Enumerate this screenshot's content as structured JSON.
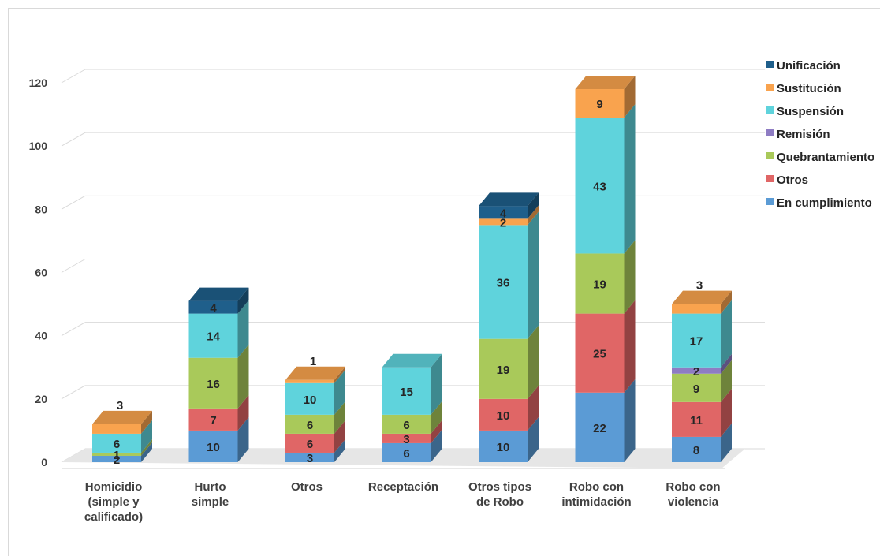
{
  "chart_data": {
    "type": "bar",
    "stacked": true,
    "three_d": true,
    "title": "",
    "xlabel": "",
    "ylabel": "",
    "ylim": [
      0,
      120
    ],
    "yticks": [
      "0",
      "20",
      "40",
      "60",
      "80",
      "100",
      "120"
    ],
    "grid": true,
    "legend_position": "right",
    "categories": [
      [
        "Homicidio",
        "(simple y",
        "calificado)"
      ],
      [
        "Hurto",
        "simple"
      ],
      [
        "Otros"
      ],
      [
        "Receptación"
      ],
      [
        "Otros tipos",
        "de Robo"
      ],
      [
        "Robo con",
        "intimidación"
      ],
      [
        "Robo con",
        "violencia"
      ]
    ],
    "series": [
      {
        "name": "En cumplimiento",
        "color": "#5b9bd5",
        "values": [
          2,
          10,
          3,
          6,
          10,
          22,
          8
        ]
      },
      {
        "name": "Otros",
        "color": "#e06666",
        "values": [
          0,
          7,
          6,
          3,
          10,
          25,
          11
        ]
      },
      {
        "name": "Quebrantamiento",
        "color": "#a9c95a",
        "values": [
          1,
          16,
          6,
          6,
          19,
          19,
          9
        ]
      },
      {
        "name": "Remisión",
        "color": "#8e7cc3",
        "values": [
          0,
          0,
          0,
          0,
          0,
          0,
          2
        ]
      },
      {
        "name": "Suspensión",
        "color": "#5fd3dc",
        "values": [
          6,
          14,
          10,
          15,
          36,
          43,
          17
        ]
      },
      {
        "name": "Sustitución",
        "color": "#f9a34e",
        "values": [
          3,
          0,
          1,
          0,
          2,
          9,
          3
        ]
      },
      {
        "name": "Unificación",
        "color": "#1f5f8b",
        "values": [
          0,
          4,
          0,
          0,
          4,
          0,
          0
        ]
      }
    ],
    "legend_order": [
      "Unificación",
      "Sustitución",
      "Suspensión",
      "Remisión",
      "Quebrantamiento",
      "Otros",
      "En cumplimiento"
    ]
  }
}
